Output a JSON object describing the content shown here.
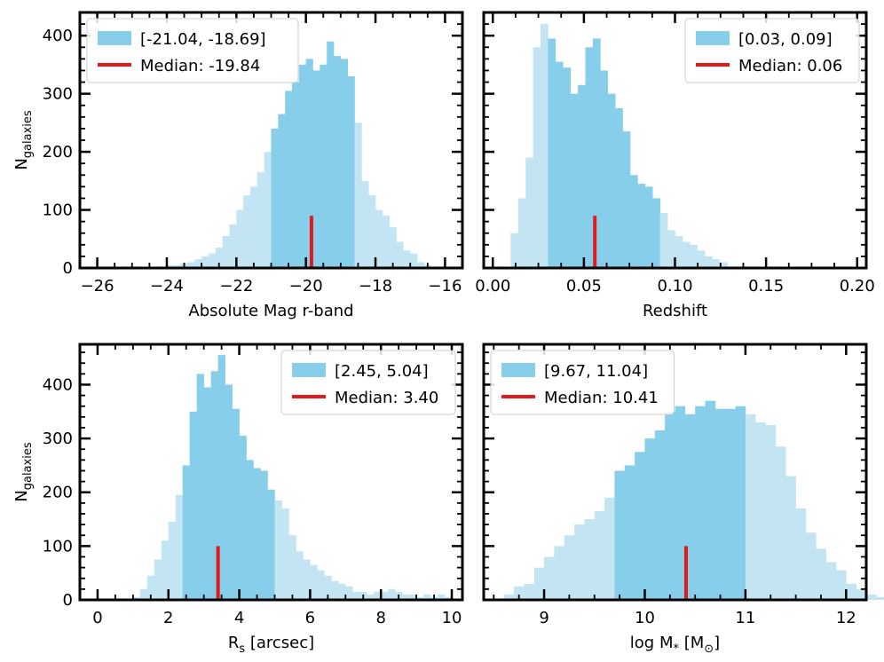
{
  "colors": {
    "light": "#c3e4f3",
    "dark": "#87ceeb",
    "median": "#e31a1c",
    "frame": "#000000"
  },
  "chart_data": [
    {
      "id": "absmag",
      "type": "bar",
      "title": "",
      "xlabel": "Absolute Mag r-band",
      "ylabel_main": "N",
      "ylabel_sub": "galaxies",
      "xlim": [
        -26.5,
        -15.5
      ],
      "ylim": [
        0,
        440
      ],
      "xticks": [
        -26,
        -24,
        -22,
        -20,
        -18,
        -16
      ],
      "xtick_labels": [
        "−26",
        "−24",
        "−22",
        "−20",
        "−18",
        "−16"
      ],
      "yticks": [
        0,
        100,
        200,
        300,
        400
      ],
      "ytick_labels": [
        "0",
        "100",
        "200",
        "300",
        "400"
      ],
      "bin_start": -24.0,
      "bin_width": 0.2,
      "hl_lo": -21.04,
      "hl_hi": -18.69,
      "values": [
        5,
        5,
        8,
        10,
        15,
        20,
        25,
        35,
        55,
        75,
        100,
        125,
        140,
        165,
        200,
        240,
        265,
        305,
        320,
        350,
        360,
        340,
        350,
        390,
        365,
        360,
        330,
        250,
        150,
        125,
        100,
        90,
        70,
        45,
        30,
        25,
        10,
        5
      ],
      "median": -19.84,
      "median_height": 90,
      "legend_pos": "top-left",
      "legend_range": "[-21.04, -18.69]",
      "legend_median": "Median: -19.84"
    },
    {
      "id": "redshift",
      "type": "bar",
      "title": "",
      "xlabel": "Redshift",
      "ylabel_main": "",
      "ylabel_sub": "",
      "xlim": [
        -0.005,
        0.205
      ],
      "ylim": [
        0,
        440
      ],
      "xticks": [
        0.0,
        0.05,
        0.1,
        0.15,
        0.2
      ],
      "xtick_labels": [
        "0.00",
        "0.05",
        "0.10",
        "0.15",
        "0.20"
      ],
      "yticks": [
        0,
        100,
        200,
        300,
        400
      ],
      "ytick_labels": [],
      "bin_start": 0.0098,
      "bin_width": 0.0041,
      "hl_lo": 0.03,
      "hl_hi": 0.09,
      "values": [
        60,
        120,
        190,
        380,
        420,
        395,
        355,
        345,
        300,
        315,
        380,
        395,
        340,
        300,
        275,
        235,
        160,
        145,
        140,
        120,
        95,
        65,
        55,
        45,
        40,
        30,
        20,
        15,
        10
      ],
      "median": 0.056,
      "median_height": 90,
      "legend_pos": "top-right",
      "legend_range": "[0.03, 0.09]",
      "legend_median": "Median: 0.06"
    },
    {
      "id": "rs",
      "type": "bar",
      "title": "",
      "xlabel_main": "R",
      "xlabel_sub": "s",
      "xlabel_rest": " [arcsec]",
      "ylabel_main": "N",
      "ylabel_sub": "galaxies",
      "xlim": [
        -0.5,
        10.3
      ],
      "ylim": [
        0,
        475
      ],
      "xticks": [
        0,
        2,
        4,
        6,
        8,
        10
      ],
      "xtick_labels": [
        "0",
        "2",
        "4",
        "6",
        "8",
        "10"
      ],
      "yticks": [
        0,
        100,
        200,
        300,
        400
      ],
      "ytick_labels": [
        "0",
        "100",
        "200",
        "300",
        "400"
      ],
      "bin_start": 1.0,
      "bin_width": 0.2,
      "hl_lo": 2.45,
      "hl_hi": 5.04,
      "values": [
        5,
        20,
        45,
        75,
        110,
        145,
        195,
        250,
        350,
        420,
        395,
        425,
        455,
        400,
        355,
        305,
        260,
        245,
        240,
        205,
        185,
        170,
        120,
        90,
        75,
        65,
        55,
        45,
        35,
        30,
        25,
        15,
        15,
        10,
        15,
        15,
        20,
        15,
        10,
        10,
        5,
        10,
        5,
        10,
        5
      ],
      "median": 3.4,
      "median_height": 100,
      "legend_pos": "top-right",
      "legend_range": "[2.45, 5.04]",
      "legend_median": "Median: 3.40"
    },
    {
      "id": "mstar",
      "type": "bar",
      "title": "",
      "xlabel_main": "log M",
      "xlabel_sub": "*",
      "xlabel_rest": " [M",
      "xlabel_sun": "⊙",
      "xlabel_end": "]",
      "ylabel_main": "",
      "ylabel_sub": "",
      "xlim": [
        8.4,
        12.2
      ],
      "ylim": [
        0,
        475
      ],
      "xticks": [
        9,
        10,
        11,
        12
      ],
      "xtick_labels": [
        "9",
        "10",
        "11",
        "12"
      ],
      "yticks": [
        0,
        100,
        200,
        300,
        400
      ],
      "ytick_labels": [],
      "bin_start": 8.6,
      "bin_width": 0.1,
      "hl_lo": 9.67,
      "hl_hi": 11.04,
      "values": [
        10,
        25,
        30,
        60,
        80,
        100,
        120,
        140,
        150,
        165,
        190,
        240,
        250,
        275,
        300,
        315,
        350,
        360,
        345,
        360,
        370,
        355,
        355,
        360,
        345,
        330,
        325,
        285,
        230,
        170,
        125,
        95,
        70,
        55,
        30,
        20,
        10,
        5
      ],
      "median": 10.41,
      "median_height": 100,
      "legend_pos": "top-left",
      "legend_range": "[9.67, 11.04]",
      "legend_median": "Median: 10.41"
    }
  ]
}
